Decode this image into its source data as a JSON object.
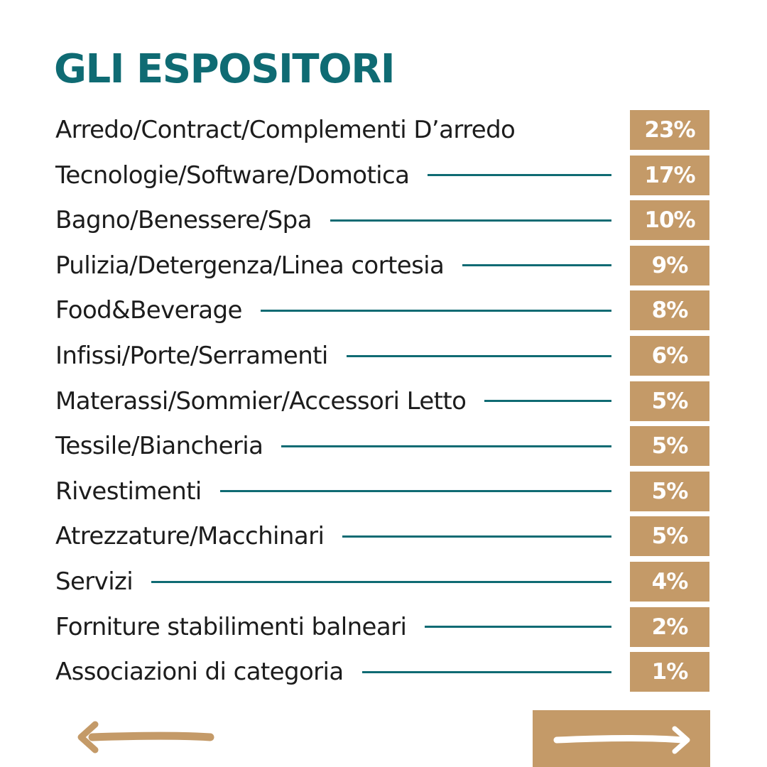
{
  "title": "GLI ESPOSITORI",
  "colors": {
    "title": "#0f6b73",
    "leader": "#0f6b73",
    "badge": "#c49a68",
    "badge_text": "#ffffff",
    "label_text": "#1c1c1c"
  },
  "items": [
    {
      "label": "Arredo/Contract/Complementi D’arredo",
      "value": "23%"
    },
    {
      "label": "Tecnologie/Software/Domotica",
      "value": "17%"
    },
    {
      "label": "Bagno/Benessere/Spa",
      "value": "10%"
    },
    {
      "label": "Pulizia/Detergenza/Linea cortesia",
      "value": "9%"
    },
    {
      "label": "Food&Beverage",
      "value": "8%"
    },
    {
      "label": "Infissi/Porte/Serramenti",
      "value": "6%"
    },
    {
      "label": "Materassi/Sommier/Accessori Letto",
      "value": "5%"
    },
    {
      "label": "Tessile/Biancheria",
      "value": "5%"
    },
    {
      "label": "Rivestimenti",
      "value": "5%"
    },
    {
      "label": "Atrezzature/Macchinari",
      "value": "5%"
    },
    {
      "label": "Servizi",
      "value": "4%"
    },
    {
      "label": "Forniture stabilimenti balneari",
      "value": "2%"
    },
    {
      "label": "Associazioni di categoria",
      "value": "1%"
    }
  ],
  "navigation": {
    "prev_icon": "arrow-left-icon",
    "next_icon": "arrow-right-icon"
  }
}
